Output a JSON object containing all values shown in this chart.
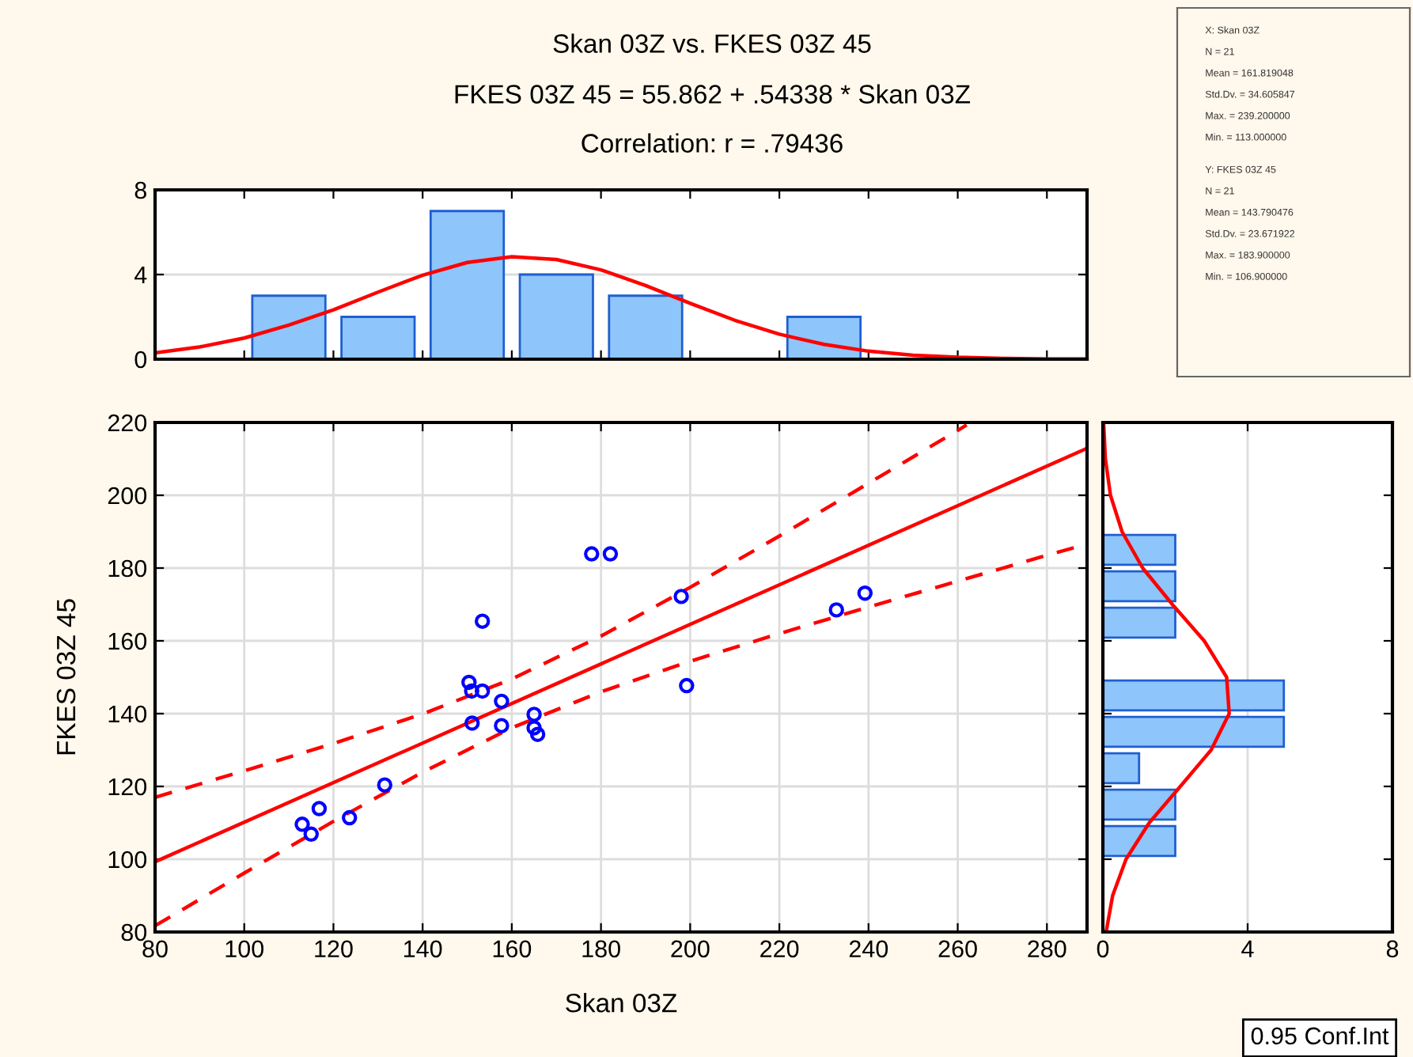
{
  "chart_data": [
    {
      "type": "histogram",
      "title": "Skan 03Z vs. FKES 03Z 45",
      "subtitle": "FKES 03Z 45 = 55.862 + .54338 * Skan 03Z",
      "annotations": [
        "Correlation: r = .79436"
      ],
      "bins": [
        100,
        120,
        140,
        160,
        180,
        200,
        220,
        240
      ],
      "values": [
        3,
        2,
        7,
        4,
        3,
        0,
        2
      ],
      "color": "#8ec5fb",
      "series": [
        {
          "type": "line",
          "color": "#ff0000",
          "x": [
            80,
            90,
            100,
            110,
            120,
            130,
            140,
            150,
            160,
            170,
            180,
            190,
            200,
            210,
            220,
            230,
            240,
            250,
            260,
            270,
            280,
            289
          ],
          "values": [
            0.3,
            0.58,
            1.0,
            1.61,
            2.33,
            3.17,
            3.97,
            4.57,
            4.84,
            4.71,
            4.22,
            3.48,
            2.64,
            1.84,
            1.18,
            0.7,
            0.38,
            0.19,
            0.09,
            0.04,
            0.01,
            0.01
          ]
        }
      ],
      "xlim": [
        80,
        289
      ],
      "xticks": [
        {
          "value": 100,
          "label": null
        },
        {
          "value": 120,
          "label": null
        },
        {
          "value": 140,
          "label": null
        },
        {
          "value": 160,
          "label": null
        },
        {
          "value": 180,
          "label": null
        },
        {
          "value": 200,
          "label": null
        },
        {
          "value": 220,
          "label": null
        },
        {
          "value": 240,
          "label": null
        },
        {
          "value": 260,
          "label": null
        },
        {
          "value": 280,
          "label": null
        }
      ],
      "ylim": [
        0,
        8
      ],
      "yticks": [
        0,
        4,
        8
      ],
      "tick_labels": "y",
      "grid": "y"
    },
    {
      "type": "other",
      "annotations": [
        "X: Skan 03Z",
        "N = 21",
        "Mean = 161.819048",
        "Std.Dv. = 34.605847",
        "Max. = 239.200000",
        "Min. = 113.000000",
        "Y: FKES 03Z 45",
        "N = 21",
        "Mean = 143.790476",
        "Std.Dv. = 23.671922",
        "Max. = 183.900000",
        "Min. = 106.900000"
      ]
    },
    {
      "type": "scatter",
      "xlabel": "Skan 03Z",
      "ylabel": "FKES 03Z 45",
      "annotations": [
        "0.95 Conf.Int"
      ],
      "series": [
        {
          "type": "scatter",
          "color": "#0000ff",
          "marker": "circle",
          "x": [
            177.9,
            182.1,
            153.4,
            150.4,
            151.0,
            153.4,
            157.7,
            151.1,
            157.7,
            165.0,
            165.0,
            165.8,
            131.5,
            116.8,
            113.0,
            115.0,
            123.6,
            198.0,
            199.2,
            232.8,
            239.2
          ],
          "values": [
            183.9,
            183.9,
            165.4,
            148.6,
            146.2,
            146.2,
            143.4,
            137.4,
            136.7,
            139.8,
            136.1,
            134.3,
            120.4,
            113.9,
            109.6,
            106.9,
            111.4,
            172.2,
            147.7,
            168.5,
            173.1
          ]
        },
        {
          "type": "line",
          "color": "#ff0000",
          "line_style": "solid",
          "x": [
            80,
            289
          ],
          "values": [
            99.3,
            212.9
          ]
        },
        {
          "type": "line",
          "color": "#ff0000",
          "line_style": "dashed",
          "x": [
            80,
            100,
            120,
            140,
            160,
            180,
            200,
            220,
            240,
            260,
            262
          ],
          "values": [
            117.0,
            124.3,
            131.8,
            139.9,
            149.5,
            161.3,
            174.7,
            188.8,
            203.3,
            217.8,
            219.3
          ]
        },
        {
          "type": "line",
          "color": "#ff0000",
          "line_style": "dashed",
          "x": [
            80,
            100,
            120,
            140,
            160,
            180,
            200,
            220,
            240,
            260,
            280,
            289
          ],
          "values": [
            81.7,
            96.2,
            110.4,
            123.9,
            136.1,
            146.0,
            154.4,
            162.0,
            169.3,
            176.4,
            183.5,
            186.6
          ]
        }
      ],
      "xlim": [
        80,
        289
      ],
      "xticks": [
        80,
        100,
        120,
        140,
        160,
        180,
        200,
        220,
        240,
        260,
        280
      ],
      "ylim": [
        80,
        220
      ],
      "yticks": [
        80,
        100,
        120,
        140,
        160,
        180,
        200,
        220
      ],
      "grid": true
    },
    {
      "type": "histogram",
      "orientation": "horizontal",
      "bins": [
        100,
        110,
        120,
        130,
        140,
        150,
        160,
        170,
        180,
        190
      ],
      "values": [
        2,
        2,
        1,
        5,
        5,
        0,
        2,
        2,
        2
      ],
      "color": "#8ec5fb",
      "series": [
        {
          "type": "line",
          "color": "#ff0000",
          "x": [
            80,
            90,
            100,
            110,
            120,
            130,
            140,
            150,
            160,
            170,
            180,
            190,
            200,
            210,
            220
          ],
          "values": [
            0.09,
            0.27,
            0.64,
            1.28,
            2.14,
            2.99,
            3.49,
            3.42,
            2.8,
            1.92,
            1.1,
            0.53,
            0.21,
            0.07,
            0.02
          ]
        }
      ],
      "ylim": [
        80,
        220
      ],
      "yticks": [
        {
          "value": 80,
          "label": null
        },
        {
          "value": 100,
          "label": null
        },
        {
          "value": 120,
          "label": null
        },
        {
          "value": 140,
          "label": null
        },
        {
          "value": 160,
          "label": null
        },
        {
          "value": 180,
          "label": null
        },
        {
          "value": 200,
          "label": null
        },
        {
          "value": 220,
          "label": null
        }
      ],
      "xlim": [
        0,
        8
      ],
      "xticks": [
        0,
        4,
        8
      ],
      "tick_labels": "x",
      "grid": "x"
    }
  ]
}
